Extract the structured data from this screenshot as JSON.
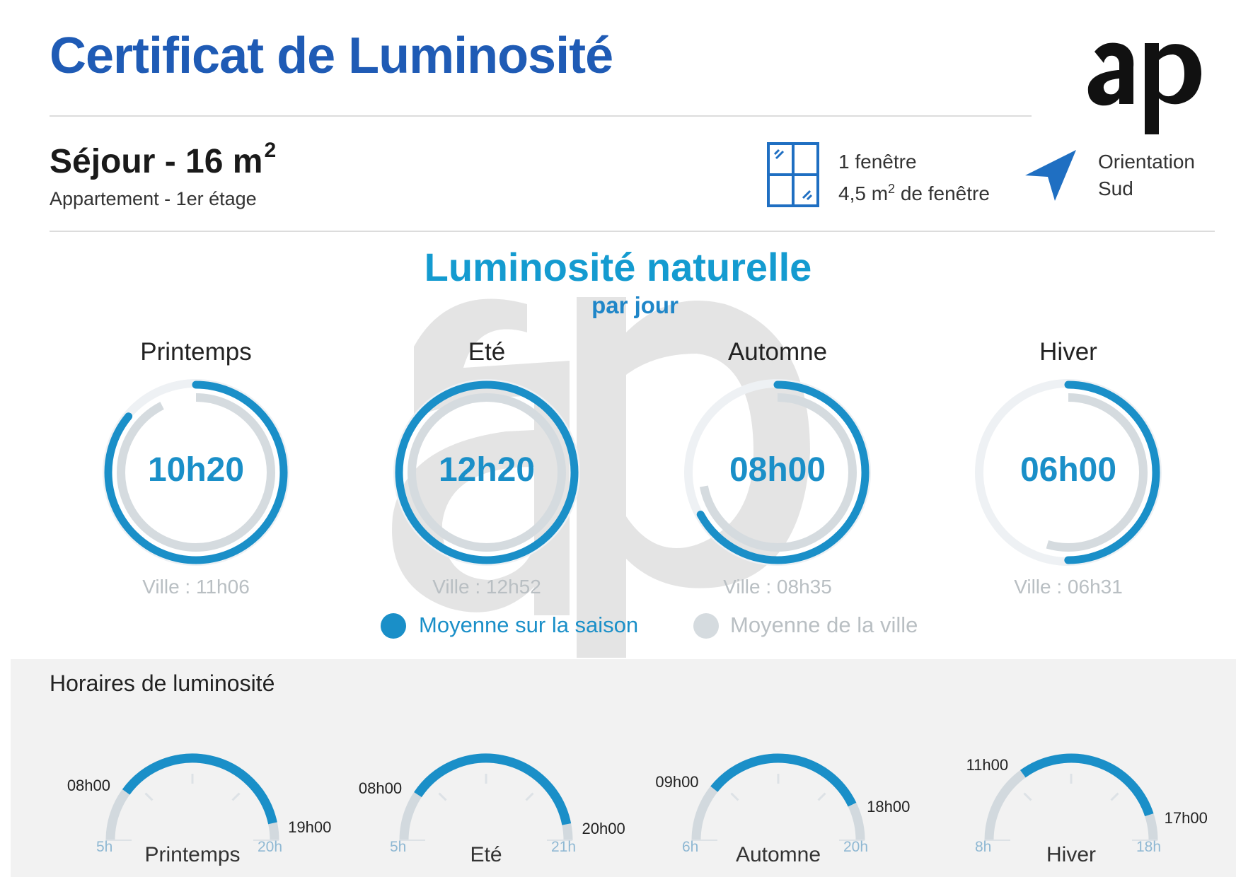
{
  "header": {
    "title": "Certificat de Luminosité",
    "logo_text": "ap"
  },
  "room": {
    "name": "Séjour - 16 m",
    "name_sup": "2",
    "subtitle": "Appartement - 1er étage"
  },
  "windows": {
    "icon": "window-icon",
    "line1": "1 fenêtre",
    "line2_prefix": "4,5 m",
    "line2_sup": "2",
    "line2_suffix": " de fenêtre"
  },
  "orientation": {
    "icon": "navigation-arrow-icon",
    "label": "Orientation",
    "value": "Sud"
  },
  "luminosite": {
    "title": "Luminosité naturelle",
    "subtitle": "par jour",
    "seasons": [
      {
        "name": "Printemps",
        "value": "10h20",
        "city": "Ville : 11h06",
        "season_fraction": 0.86,
        "city_fraction": 0.925
      },
      {
        "name": "Eté",
        "value": "12h20",
        "city": "Ville : 12h52",
        "season_fraction": 1.0,
        "city_fraction": 1.0
      },
      {
        "name": "Automne",
        "value": "08h00",
        "city": "Ville : 08h35",
        "season_fraction": 0.67,
        "city_fraction": 0.72
      },
      {
        "name": "Hiver",
        "value": "06h00",
        "city": "Ville : 06h31",
        "season_fraction": 0.5,
        "city_fraction": 0.545
      }
    ],
    "legend": {
      "season": "Moyenne sur la saison",
      "city": "Moyenne de la ville"
    }
  },
  "horaires": {
    "title": "Horaires de luminosité",
    "gauges": [
      {
        "name": "Printemps",
        "min": "5h",
        "max": "20h",
        "start": "08h00",
        "end": "19h00",
        "min_h": 5,
        "max_h": 20,
        "start_h": 8,
        "end_h": 19
      },
      {
        "name": "Eté",
        "min": "5h",
        "max": "21h",
        "start": "08h00",
        "end": "20h00",
        "min_h": 5,
        "max_h": 21,
        "start_h": 8,
        "end_h": 20
      },
      {
        "name": "Automne",
        "min": "6h",
        "max": "20h",
        "start": "09h00",
        "end": "18h00",
        "min_h": 6,
        "max_h": 20,
        "start_h": 9,
        "end_h": 18
      },
      {
        "name": "Hiver",
        "min": "8h",
        "max": "18h",
        "start": "11h00",
        "end": "17h00",
        "min_h": 8,
        "max_h": 18,
        "start_h": 11,
        "end_h": 17
      }
    ]
  },
  "colors": {
    "blue": "#1a8fc8",
    "title_blue": "#1f5bb5",
    "grey_ring": "#d5dbdf",
    "outer_ring": "#eef1f4",
    "gauge_grey": "#d2d9de"
  }
}
